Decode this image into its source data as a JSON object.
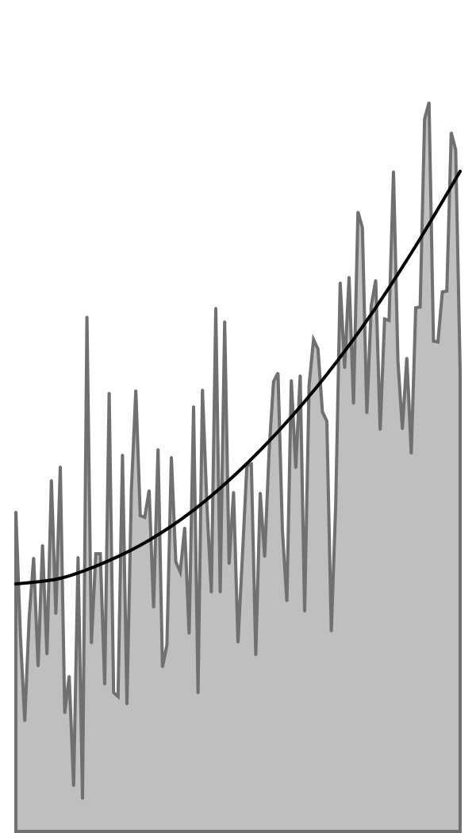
{
  "chart_data": {
    "type": "area",
    "title": "",
    "xlabel": "",
    "ylabel": "",
    "x_range": [
      0,
      100
    ],
    "ylim": [
      0,
      100
    ],
    "grid": false,
    "legend": "none",
    "colors": {
      "area_fill": "#bfbfbf",
      "area_line": "#707070",
      "trend_line": "#000000",
      "background": "#ffffff"
    },
    "series": [
      {
        "kind": "area",
        "values": [
          40.3,
          24.9,
          13.9,
          27.0,
          34.5,
          20.8,
          36.1,
          22.3,
          44.3,
          27.4,
          46.0,
          14.9,
          19.6,
          5.7,
          34.6,
          4.1,
          64.9,
          23.7,
          35.0,
          35.0,
          18.5,
          55.3,
          17.5,
          17.0,
          47.5,
          16.0,
          43.0,
          55.6,
          39.8,
          39.6,
          43.0,
          28.2,
          48.2,
          20.7,
          23.5,
          47.2,
          34.0,
          32.7,
          38.3,
          24.9,
          53.6,
          17.4,
          55.7,
          41.2,
          30.1,
          66.0,
          30.1,
          64.3,
          33.7,
          42.8,
          23.8,
          34.8,
          46.1,
          46.3,
          22.2,
          42.7,
          34.6,
          47.9,
          56.7,
          57.8,
          37.9,
          29.0,
          56.9,
          45.8,
          57.5,
          27.7,
          56.2,
          62.0,
          60.8,
          52.9,
          51.7,
          25.2,
          41.3,
          69.2,
          58.4,
          69.9,
          53.9,
          78.1,
          76.1,
          52.7,
          66.3,
          69.5,
          50.6,
          64.6,
          64.4,
          83.2,
          59.3,
          50.7,
          59.7,
          47.6,
          66.0,
          66.1,
          89.8,
          91.9,
          61.8,
          61.7,
          68.0,
          68.1,
          88.1,
          85.9,
          58.1
        ]
      },
      {
        "kind": "trend",
        "x": [
          0,
          10,
          20,
          30,
          40,
          50,
          60,
          70,
          80,
          90,
          100
        ],
        "values": [
          31.2,
          31.9,
          33.9,
          36.7,
          40.5,
          45.3,
          51.0,
          57.6,
          65.2,
          73.8,
          83.2
        ]
      }
    ]
  }
}
